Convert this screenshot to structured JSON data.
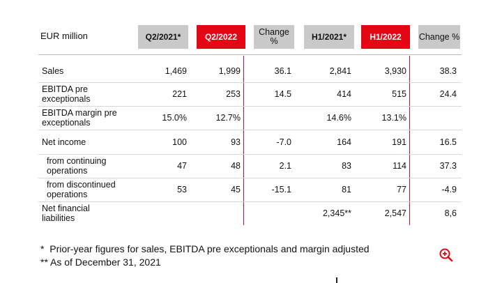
{
  "header": {
    "label": "EUR million",
    "columns": [
      "Q2/2021*",
      "Q2/2022",
      "Change\n%",
      "H1/2021*",
      "H1/2022",
      "Change\n%"
    ]
  },
  "rows": [
    {
      "label": "Sales",
      "values": [
        "1,469",
        "1,999",
        "36.1",
        "2,841",
        "3,930",
        "38.3"
      ]
    },
    {
      "label": "EBITDA pre\nexceptionals",
      "values": [
        "221",
        "253",
        "14.5",
        "414",
        "515",
        "24.4"
      ]
    },
    {
      "label": "EBITDA margin pre\nexceptionals",
      "values": [
        "15.0%",
        "12.7%",
        null,
        "14.6%",
        "13.1%",
        null
      ]
    },
    {
      "label": "Net income",
      "values": [
        "100",
        "93",
        "-7.0",
        "164",
        "191",
        "16.5"
      ]
    },
    {
      "label": "from continuing\noperations",
      "values": [
        "47",
        "48",
        "2.1",
        "83",
        "114",
        "37.3"
      ]
    },
    {
      "label": "from discontinued\noperations",
      "values": [
        "53",
        "45",
        "-15.1",
        "81",
        "77",
        "-4.9"
      ]
    },
    {
      "label": "Net financial\nliabilities",
      "values": [
        null,
        null,
        null,
        "2,345**",
        "2,547",
        "8,6"
      ]
    }
  ],
  "footnotes": [
    "*  Prior-year figures for sales, EBITDA pre exceptionals and margin adjusted",
    "** As of December 31, 2021"
  ]
}
